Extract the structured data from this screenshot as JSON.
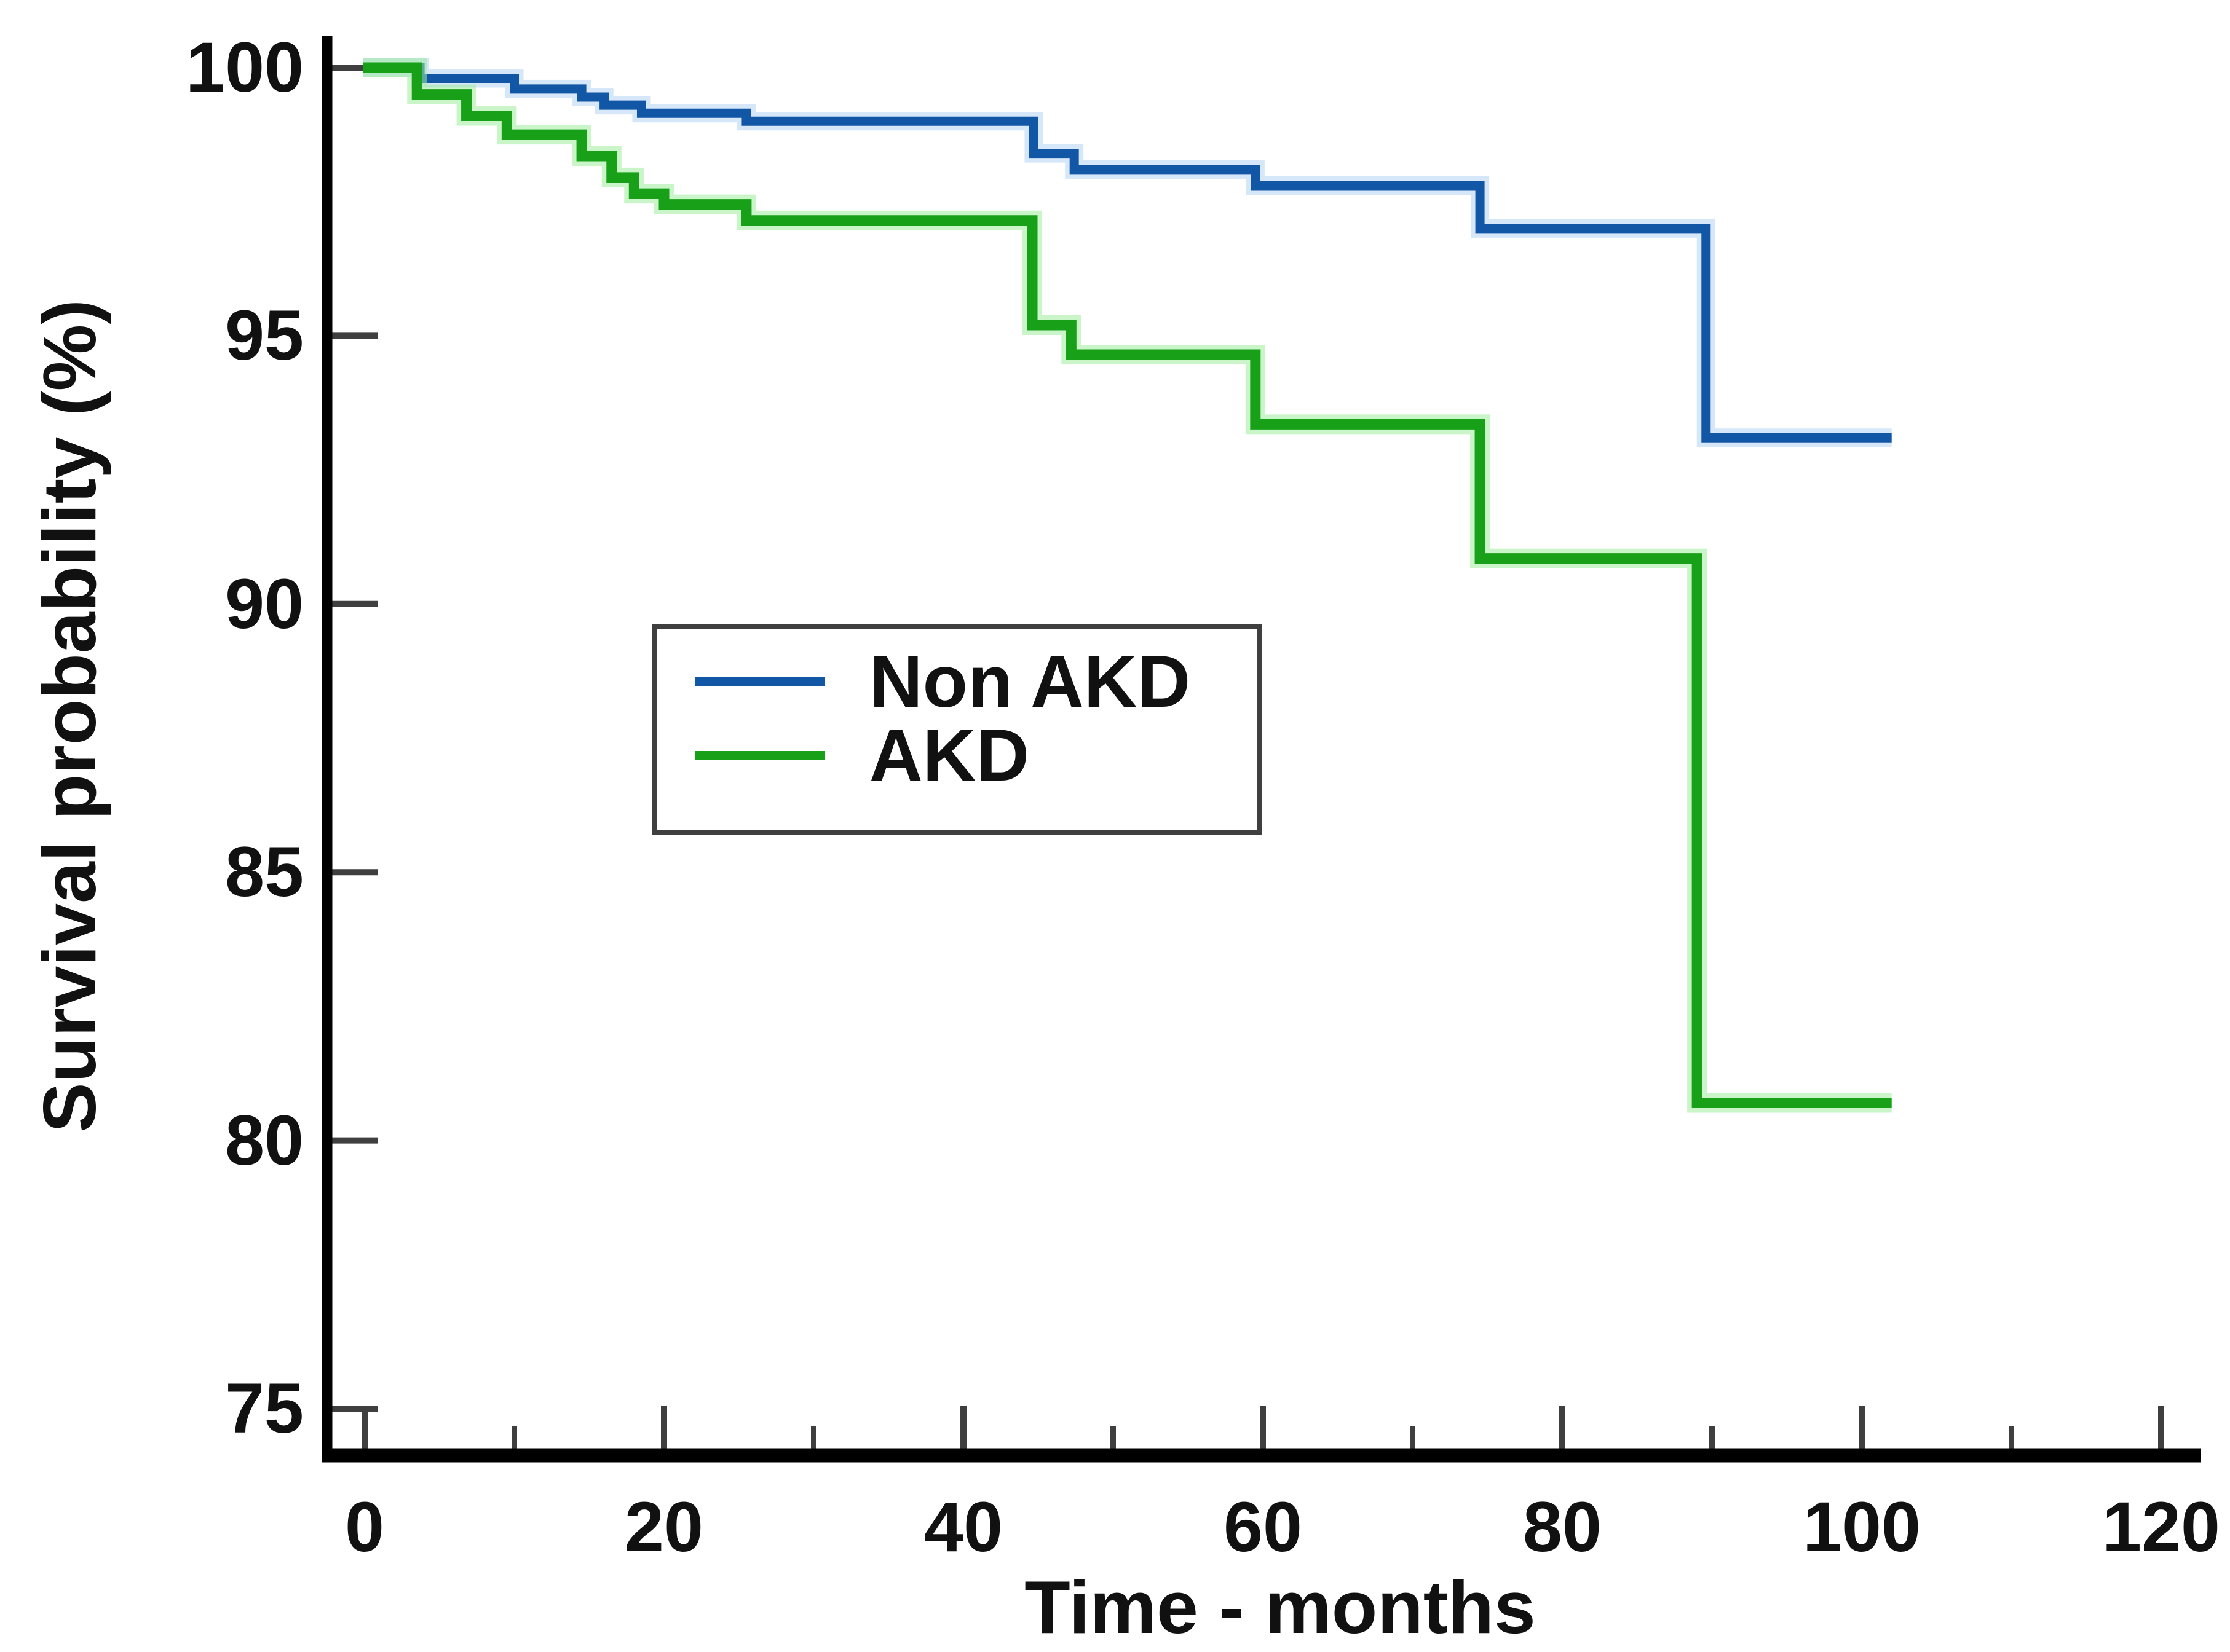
{
  "chart_data": {
    "type": "line",
    "subtype": "kaplan-meier-step-curves",
    "title": "",
    "xlabel": "Time - months",
    "ylabel": "Survival probability (%)",
    "xlim": [
      0,
      120
    ],
    "ylim": [
      75,
      100
    ],
    "x_major_ticks": [
      0,
      20,
      40,
      60,
      80,
      100,
      120
    ],
    "x_minor_ticks": [
      10,
      30,
      50,
      70,
      90,
      110
    ],
    "y_ticks": [
      100,
      95,
      90,
      85,
      80,
      75
    ],
    "grid": "off",
    "legend_position": "inside-center-left",
    "background": "#ffffff",
    "axis_color": "#000000",
    "tick_color": "#3f3f3f",
    "series": [
      {
        "name": "Non AKD",
        "color": "#1257a5",
        "halo_color": "#b3d4f2",
        "points": [
          [
            0,
            100
          ],
          [
            3.7,
            99.8
          ],
          [
            10,
            99.6
          ],
          [
            14.5,
            99.45
          ],
          [
            16,
            99.3
          ],
          [
            18.5,
            99.15
          ],
          [
            25.5,
            99.0
          ],
          [
            44.7,
            98.4
          ],
          [
            47.4,
            98.1
          ],
          [
            59.5,
            97.8
          ],
          [
            74.5,
            97.0
          ],
          [
            89.6,
            93.1
          ],
          [
            102,
            93.1
          ]
        ]
      },
      {
        "name": "AKD",
        "color": "#18a018",
        "halo_color": "#9dec9d",
        "points": [
          [
            0,
            100
          ],
          [
            3.5,
            99.5
          ],
          [
            6.8,
            99.1
          ],
          [
            9.5,
            98.75
          ],
          [
            14.5,
            98.35
          ],
          [
            16.5,
            97.95
          ],
          [
            18,
            97.65
          ],
          [
            20,
            97.45
          ],
          [
            25.5,
            97.15
          ],
          [
            44.6,
            95.2
          ],
          [
            47.2,
            94.65
          ],
          [
            59.5,
            93.35
          ],
          [
            74.5,
            90.85
          ],
          [
            89,
            80.7
          ],
          [
            102,
            80.7
          ]
        ]
      }
    ]
  },
  "legend": {
    "items": [
      {
        "label": "Non AKD"
      },
      {
        "label": "AKD"
      }
    ]
  }
}
